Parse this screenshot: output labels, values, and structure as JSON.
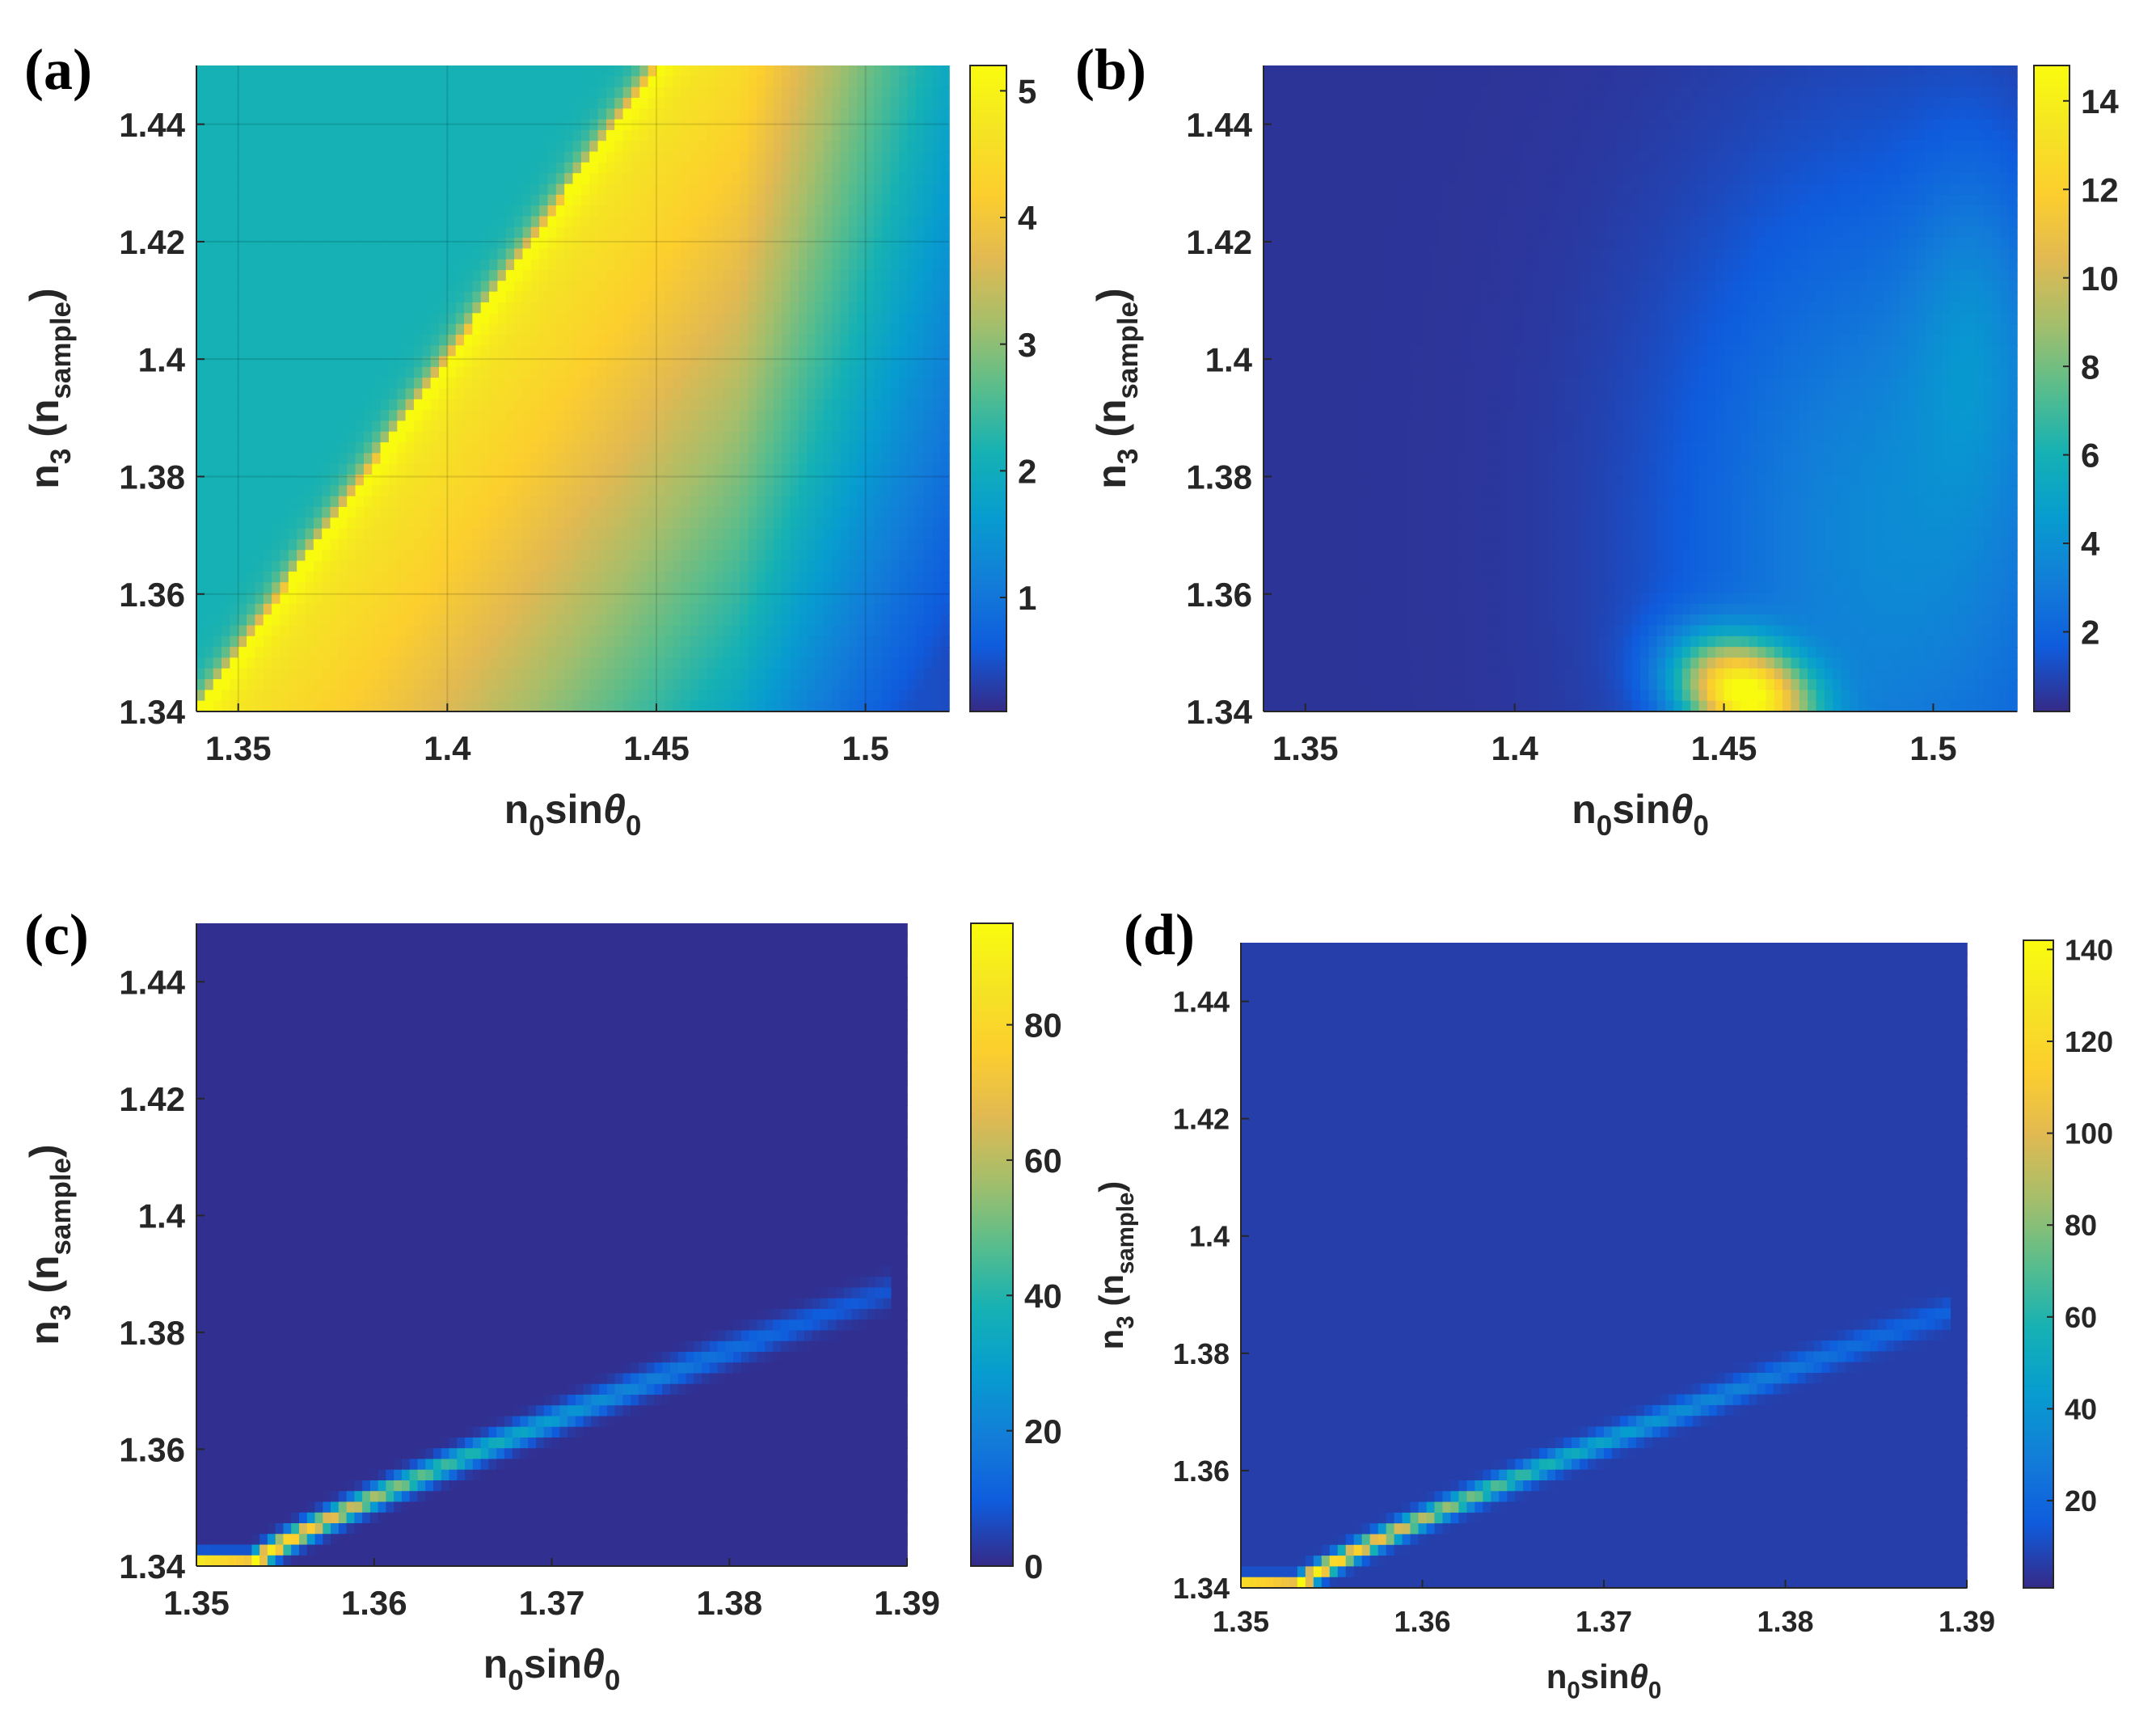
{
  "chart_data": [
    {
      "type": "heatmap",
      "panel_label": "(a)",
      "xlabel": {
        "base": "n",
        "sub": "0",
        "mid": "sin",
        "theta": "θ",
        "sub2": "0"
      },
      "ylabel": {
        "base": "n",
        "sub": "3",
        "open": " (n",
        "sub2": "sample",
        "close": ")"
      },
      "xlim": [
        1.34,
        1.52
      ],
      "ylim": [
        1.34,
        1.45
      ],
      "xticks": [
        1.35,
        1.4,
        1.45,
        1.5
      ],
      "xtick_labels": [
        "1.35",
        "1.4",
        "1.45",
        "1.5"
      ],
      "yticks": [
        1.34,
        1.36,
        1.38,
        1.4,
        1.42,
        1.44
      ],
      "ytick_labels": [
        "1.34",
        "1.36",
        "1.38",
        "1.4",
        "1.42",
        "1.44"
      ],
      "colorbar": {
        "min": 0.1,
        "max": 5.2,
        "ticks": [
          1,
          2,
          3,
          4,
          5
        ],
        "tick_labels": [
          "1",
          "2",
          "3",
          "4",
          "5"
        ]
      },
      "colormap": "parula",
      "grid": true
    },
    {
      "type": "heatmap",
      "panel_label": "(b)",
      "xlabel": {
        "base": "n",
        "sub": "0",
        "mid": "sin",
        "theta": "θ",
        "sub2": "0"
      },
      "ylabel": {
        "base": "n",
        "sub": "3",
        "open": " (n",
        "sub2": "sample",
        "close": ")"
      },
      "xlim": [
        1.34,
        1.52
      ],
      "ylim": [
        1.34,
        1.45
      ],
      "xticks": [
        1.35,
        1.4,
        1.45,
        1.5
      ],
      "xtick_labels": [
        "1.35",
        "1.4",
        "1.45",
        "1.5"
      ],
      "yticks": [
        1.34,
        1.36,
        1.38,
        1.4,
        1.42,
        1.44
      ],
      "ytick_labels": [
        "1.34",
        "1.36",
        "1.38",
        "1.4",
        "1.42",
        "1.44"
      ],
      "colorbar": {
        "min": 0.2,
        "max": 14.8,
        "ticks": [
          2,
          4,
          6,
          8,
          10,
          12,
          14
        ],
        "tick_labels": [
          "2",
          "4",
          "6",
          "8",
          "10",
          "12",
          "14"
        ]
      },
      "colormap": "parula",
      "grid": false
    },
    {
      "type": "heatmap",
      "panel_label": "(c)",
      "xlabel": {
        "base": "n",
        "sub": "0",
        "mid": "sin",
        "theta": "θ",
        "sub2": "0"
      },
      "ylabel": {
        "base": "n",
        "sub": "3",
        "open": " (n",
        "sub2": "sample",
        "close": ")"
      },
      "xlim": [
        1.35,
        1.39
      ],
      "ylim": [
        1.34,
        1.45
      ],
      "xticks": [
        1.35,
        1.36,
        1.37,
        1.38,
        1.39
      ],
      "xtick_labels": [
        "1.35",
        "1.36",
        "1.37",
        "1.38",
        "1.39"
      ],
      "yticks": [
        1.34,
        1.36,
        1.38,
        1.4,
        1.42,
        1.44
      ],
      "ytick_labels": [
        "1.34",
        "1.36",
        "1.38",
        "1.4",
        "1.42",
        "1.44"
      ],
      "colorbar": {
        "min": 0,
        "max": 95,
        "ticks": [
          0,
          20,
          40,
          60,
          80
        ],
        "tick_labels": [
          "0",
          "20",
          "40",
          "60",
          "80"
        ]
      },
      "colormap": "parula",
      "grid": false
    },
    {
      "type": "heatmap",
      "panel_label": "(d)",
      "xlabel": {
        "base": "n",
        "sub": "0",
        "mid": "sin",
        "theta": "θ",
        "sub2": "0"
      },
      "ylabel": {
        "base": "n",
        "sub": "3",
        "open": " (n",
        "sub2": "sample",
        "close": ")"
      },
      "xlim": [
        1.35,
        1.39
      ],
      "ylim": [
        1.34,
        1.45
      ],
      "xticks": [
        1.35,
        1.36,
        1.37,
        1.38,
        1.39
      ],
      "xtick_labels": [
        "1.35",
        "1.36",
        "1.37",
        "1.38",
        "1.39"
      ],
      "yticks": [
        1.34,
        1.36,
        1.38,
        1.4,
        1.42,
        1.44
      ],
      "ytick_labels": [
        "1.34",
        "1.36",
        "1.38",
        "1.4",
        "1.42",
        "1.44"
      ],
      "colorbar": {
        "min": 1,
        "max": 142,
        "ticks": [
          20,
          40,
          60,
          80,
          100,
          120,
          140
        ],
        "tick_labels": [
          "20",
          "40",
          "60",
          "80",
          "100",
          "120",
          "140"
        ]
      },
      "colormap": "parula",
      "grid": false
    }
  ]
}
